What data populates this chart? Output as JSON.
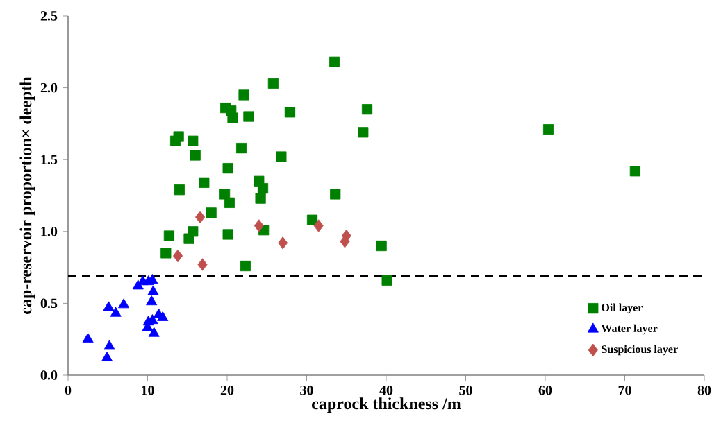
{
  "chart_data": {
    "type": "scatter",
    "xlabel": "caprock thickness /m",
    "ylabel": "cap-reservoir proportion× deepth",
    "xlim": [
      0,
      80
    ],
    "ylim": [
      0,
      2.5
    ],
    "xticks": [
      0,
      10,
      20,
      30,
      40,
      50,
      60,
      70,
      80
    ],
    "yticks": [
      {
        "value": 0,
        "label": "0.0"
      },
      {
        "value": 0.5,
        "label": "0.5"
      },
      {
        "value": 1,
        "label": "1.0"
      },
      {
        "value": 1.5,
        "label": "1.5"
      },
      {
        "value": 2,
        "label": "2.0"
      },
      {
        "value": 2.5,
        "label": "2.5"
      }
    ],
    "grid": false,
    "legend": "bottom right",
    "ref_lines": [
      {
        "axis": "y",
        "value": 0.69,
        "color": "#000000",
        "line_style": "dashed"
      }
    ],
    "series": [
      {
        "name": "Oil layer",
        "color": "#008000",
        "marker": "square",
        "x": [
          12.3,
          12.7,
          13.5,
          13.9,
          14.0,
          15.2,
          15.7,
          15.7,
          16.0,
          17.1,
          18.0,
          19.7,
          19.8,
          20.1,
          20.1,
          20.3,
          20.5,
          20.7,
          21.8,
          22.1,
          22.3,
          22.7,
          24.0,
          24.2,
          24.5,
          24.6,
          25.8,
          26.8,
          27.9,
          30.7,
          33.6,
          33.5,
          37.1,
          37.6,
          39.4,
          40.1,
          60.4,
          71.3
        ],
        "values": [
          0.85,
          0.97,
          1.63,
          1.66,
          1.29,
          0.95,
          1.0,
          1.63,
          1.53,
          1.34,
          1.13,
          1.26,
          1.86,
          1.44,
          0.98,
          1.2,
          1.84,
          1.79,
          1.58,
          1.95,
          0.76,
          1.8,
          1.35,
          1.23,
          1.3,
          1.01,
          2.03,
          1.52,
          1.83,
          1.08,
          1.26,
          2.18,
          1.69,
          1.85,
          0.9,
          0.66,
          1.71,
          1.42
        ]
      },
      {
        "name": "Water layer",
        "color": "#0000ff",
        "marker": "triangle",
        "x": [
          2.5,
          4.9,
          5.2,
          5.1,
          6.0,
          7.0,
          8.8,
          9.4,
          10.1,
          10.6,
          10.7,
          10.5,
          10.1,
          10.6,
          10.0,
          10.8,
          11.4,
          11.9
        ],
        "values": [
          0.25,
          0.12,
          0.2,
          0.47,
          0.43,
          0.49,
          0.62,
          0.65,
          0.65,
          0.66,
          0.58,
          0.51,
          0.37,
          0.38,
          0.33,
          0.29,
          0.42,
          0.4
        ]
      },
      {
        "name": "Suspicious layer",
        "color": "#c0504d",
        "marker": "diamond",
        "x": [
          13.8,
          16.6,
          16.9,
          24.0,
          27.0,
          31.5,
          35.0,
          34.8
        ],
        "values": [
          0.83,
          1.1,
          0.77,
          1.04,
          0.92,
          1.04,
          0.97,
          0.93
        ]
      }
    ]
  }
}
